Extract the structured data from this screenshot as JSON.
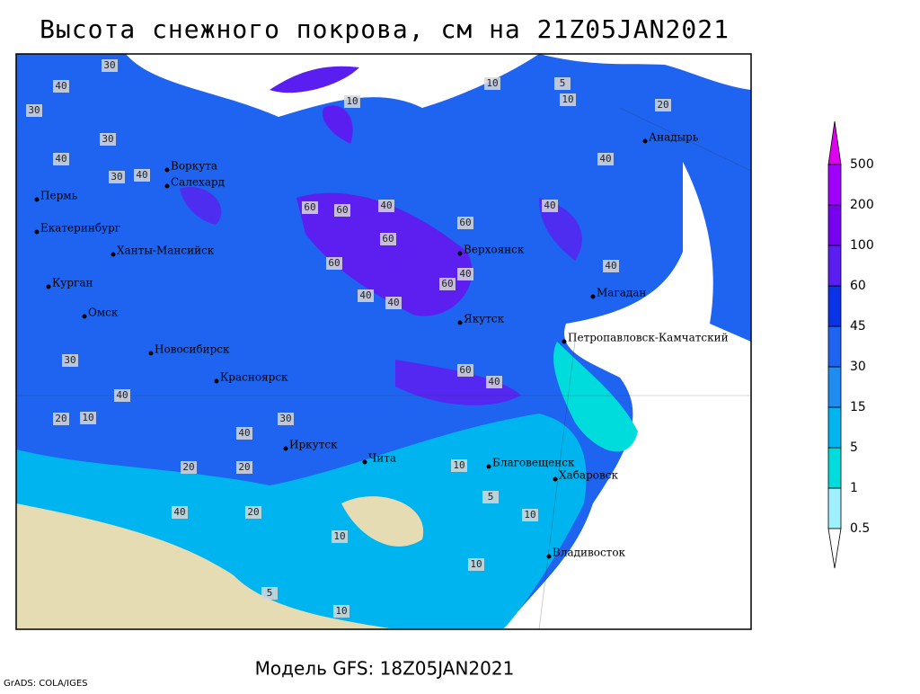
{
  "title": "Высота снежного покрова, см на 21Z05JAN2021",
  "footer": "Модель GFS: 18Z05JAN2021",
  "credit": "GrADS: COLA/IGES",
  "colorbar": {
    "levels": [
      0.5,
      1,
      5,
      15,
      30,
      45,
      60,
      100,
      200,
      500
    ],
    "colors": [
      "#ffffff",
      "#a0f0ff",
      "#00dcdc",
      "#00b4f0",
      "#1e8cf0",
      "#1e64f0",
      "#0a32e6",
      "#5a1ef0",
      "#7800f0",
      "#a000ff",
      "#e000f0"
    ]
  },
  "cities": [
    "Воркута",
    "Салехард",
    "Пермь",
    "Екатеринбург",
    "Ханты-Мансийск",
    "Курган",
    "Омск",
    "Новосибирск",
    "Красноярск",
    "Иркутск",
    "Чита",
    "Благовещенск",
    "Хабаровск",
    "Владивосток",
    "Якутск",
    "Верхоянск",
    "Магадан",
    "Петропавловск-Камчатский",
    "Анадырь"
  ],
  "contour_labels": [
    30,
    40,
    30,
    30,
    40,
    30,
    40,
    10,
    10,
    5,
    10,
    20,
    40,
    60,
    60,
    40,
    60,
    60,
    60,
    40,
    40,
    40,
    60,
    40,
    40,
    60,
    40,
    30,
    40,
    20,
    10,
    20,
    10,
    10,
    5,
    10,
    10,
    5,
    10,
    20,
    20,
    30,
    40,
    40
  ]
}
